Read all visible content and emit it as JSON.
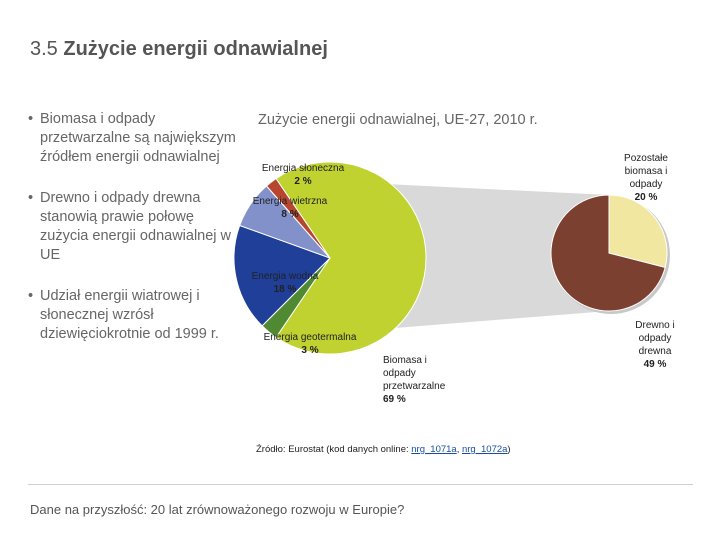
{
  "slide": {
    "number": "3.5",
    "title": "Zużycie energii odnawialnej"
  },
  "bullets": [
    "Biomasa i odpady przetwarzalne są największym źródłem energii odnawialnej",
    "Drewno i odpady drewna stanowią prawie połowę zużycia energii odnawialnej w UE",
    "Udział energii wiatrowej i słonecznej wzrósł dziewięciokrotnie od 1999 r."
  ],
  "source": {
    "prefix": "Źródło: Eurostat (kod danych online: ",
    "link1": "nrg_1071a",
    "sep": ", ",
    "link2": "nrg_1072a",
    "suffix": ")"
  },
  "footer": "Dane na przyszłość: 20 lat zrównoważonego rozwoju w Europie?",
  "chart_data": [
    {
      "type": "pie",
      "title": "Zużycie energii odnawialnej, UE-27, 2010 r.",
      "slices": [
        {
          "name": "Biomasa i odpady przetwarzalne",
          "label_lines": [
            "Biomasa i",
            "odpady",
            "przetwarzalne"
          ],
          "value_label": "69 %",
          "value": 69,
          "color": "#bfd22f"
        },
        {
          "name": "Energia geotermalna",
          "label_lines": [
            "Energia geotermalna"
          ],
          "value_label": "3 %",
          "value": 3,
          "color": "#4f8a33"
        },
        {
          "name": "Energia wodna",
          "label_lines": [
            "Energia wodna"
          ],
          "value_label": "18 %",
          "value": 18,
          "color": "#1f3f99"
        },
        {
          "name": "Energia wietrzna",
          "label_lines": [
            "Energia wietrzna"
          ],
          "value_label": "8 %",
          "value": 8,
          "color": "#8391cb"
        },
        {
          "name": "Energia słoneczna",
          "label_lines": [
            "Energia słoneczna"
          ],
          "value_label": "2 %",
          "value": 2,
          "color": "#b8462f"
        }
      ]
    },
    {
      "type": "pie",
      "title": "",
      "slices": [
        {
          "name": "Drewno i odpady drewna",
          "label_lines": [
            "Drewno i",
            "odpady",
            "drewna"
          ],
          "value_label": "49 %",
          "value": 49,
          "color": "#7c4030"
        },
        {
          "name": "Pozostałe biomasa i odpady",
          "label_lines": [
            "Pozostałe",
            "biomasa i",
            "odpady"
          ],
          "value_label": "20 %",
          "value": 20,
          "color": "#f1e7a0"
        }
      ]
    }
  ]
}
